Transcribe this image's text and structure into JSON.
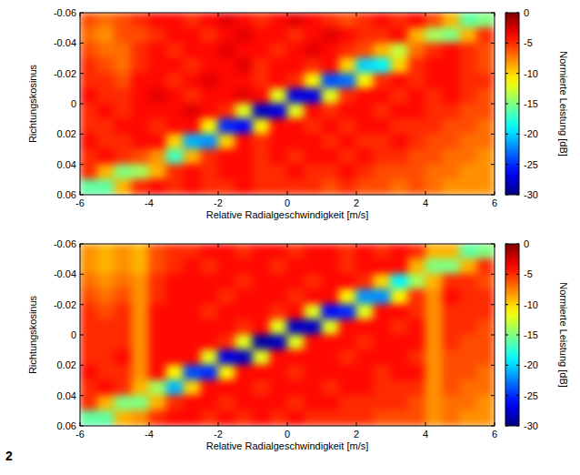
{
  "figure_label": "2",
  "chart_data": [
    {
      "type": "heatmap",
      "x_label": "Relative Radialgeschwindigkeit [m/s]",
      "y_label": "Richtungskosinus",
      "xlim": [
        -6,
        6
      ],
      "ylim": [
        0.06,
        -0.06
      ],
      "xticks": [
        -6,
        -4,
        -2,
        0,
        2,
        4,
        6
      ],
      "yticks": [
        0.06,
        0.04,
        0.02,
        0,
        -0.02,
        -0.04,
        -0.06
      ],
      "x": [
        -5.75,
        -5.25,
        -4.75,
        -4.25,
        -3.75,
        -3.25,
        -2.75,
        -2.25,
        -1.75,
        -1.25,
        -0.75,
        -0.25,
        0.25,
        0.75,
        1.25,
        1.75,
        2.25,
        2.75,
        3.25,
        3.75,
        4.25,
        4.75,
        5.25,
        5.75
      ],
      "y": [
        -0.055,
        -0.045,
        -0.035,
        -0.025,
        -0.015,
        -0.005,
        0.005,
        0.015,
        0.025,
        0.035,
        0.045,
        0.055
      ],
      "cells": [
        [
          -6,
          -7,
          -6,
          -5,
          -4,
          -4,
          -5,
          -4,
          -3,
          -4,
          -5,
          -4,
          -3,
          -4,
          -5,
          -6,
          -5,
          -4,
          -5,
          -4,
          -6,
          -9,
          -16,
          -15
        ],
        [
          -7,
          -8,
          -6,
          -6,
          -5,
          -4,
          -4,
          -5,
          -4,
          -3,
          -4,
          -4,
          -5,
          -4,
          -3,
          -4,
          -5,
          -5,
          -4,
          -9,
          -14,
          -15,
          -9,
          -5
        ],
        [
          -6,
          -7,
          -7,
          -5,
          -4,
          -5,
          -4,
          -4,
          -3,
          -4,
          -4,
          -5,
          -4,
          -3,
          -4,
          -5,
          -6,
          -9,
          -13,
          -7,
          -5,
          -4,
          -5,
          -6
        ],
        [
          -5,
          -6,
          -7,
          -5,
          -4,
          -4,
          -5,
          -4,
          -4,
          -3,
          -5,
          -4,
          -4,
          -5,
          -4,
          -10,
          -20,
          -19,
          -10,
          -5,
          -4,
          -4,
          -5,
          -6
        ],
        [
          -5,
          -5,
          -6,
          -4,
          -4,
          -5,
          -4,
          -3,
          -4,
          -4,
          -5,
          -4,
          -5,
          -11,
          -24,
          -23,
          -11,
          -5,
          -4,
          -5,
          -4,
          -4,
          -5,
          -5
        ],
        [
          -4,
          -5,
          -5,
          -4,
          -3,
          -4,
          -5,
          -4,
          -4,
          -3,
          -4,
          -12,
          -27,
          -27,
          -12,
          -5,
          -4,
          -4,
          -5,
          -4,
          -5,
          -4,
          -5,
          -6
        ],
        [
          -5,
          -4,
          -5,
          -4,
          -4,
          -4,
          -3,
          -4,
          -5,
          -12,
          -28,
          -27,
          -12,
          -4,
          -5,
          -4,
          -4,
          -5,
          -4,
          -4,
          -5,
          -5,
          -6,
          -6
        ],
        [
          -5,
          -5,
          -4,
          -4,
          -5,
          -4,
          -4,
          -11,
          -25,
          -26,
          -11,
          -4,
          -4,
          -5,
          -4,
          -5,
          -4,
          -4,
          -5,
          -5,
          -5,
          -6,
          -6,
          -7
        ],
        [
          -4,
          -5,
          -5,
          -4,
          -4,
          -10,
          -21,
          -22,
          -10,
          -4,
          -5,
          -4,
          -4,
          -4,
          -5,
          -4,
          -5,
          -5,
          -4,
          -5,
          -6,
          -6,
          -7,
          -7
        ],
        [
          -5,
          -4,
          -5,
          -6,
          -8,
          -17,
          -9,
          -5,
          -4,
          -4,
          -5,
          -4,
          -5,
          -4,
          -4,
          -5,
          -4,
          -5,
          -5,
          -6,
          -6,
          -7,
          -7,
          -8
        ],
        [
          -5,
          -9,
          -15,
          -14,
          -9,
          -5,
          -4,
          -5,
          -4,
          -4,
          -5,
          -5,
          -4,
          -5,
          -5,
          -4,
          -5,
          -6,
          -6,
          -6,
          -7,
          -7,
          -8,
          -8
        ],
        [
          -16,
          -16,
          -9,
          -5,
          -4,
          -5,
          -4,
          -5,
          -5,
          -4,
          -5,
          -5,
          -5,
          -5,
          -6,
          -5,
          -6,
          -6,
          -7,
          -6,
          -7,
          -8,
          -8,
          -8
        ]
      ],
      "colorbar": {
        "label": "Normierte Leistung [dB]",
        "range": [
          -30,
          0
        ],
        "ticks": [
          0,
          -5,
          -10,
          -15,
          -20,
          -25,
          -30
        ]
      }
    },
    {
      "type": "heatmap",
      "x_label": "Relative Radialgeschwindigkeit [m/s]",
      "y_label": "Richtungskosinus",
      "xlim": [
        -6,
        6
      ],
      "ylim": [
        0.06,
        -0.06
      ],
      "xticks": [
        -6,
        -4,
        -2,
        0,
        2,
        4,
        6
      ],
      "yticks": [
        0.06,
        0.04,
        0.02,
        0,
        -0.02,
        -0.04,
        -0.06
      ],
      "x": [
        -5.75,
        -5.25,
        -4.75,
        -4.25,
        -3.75,
        -3.25,
        -2.75,
        -2.25,
        -1.75,
        -1.25,
        -0.75,
        -0.25,
        0.25,
        0.75,
        1.25,
        1.75,
        2.25,
        2.75,
        3.25,
        3.75,
        4.25,
        4.75,
        5.25,
        5.75
      ],
      "y": [
        -0.055,
        -0.045,
        -0.035,
        -0.025,
        -0.015,
        -0.005,
        0.005,
        0.015,
        0.025,
        0.035,
        0.045,
        0.055
      ],
      "cells": [
        [
          -8,
          -9,
          -8,
          -9,
          -6,
          -5,
          -5,
          -4,
          -4,
          -5,
          -4,
          -4,
          -5,
          -4,
          -4,
          -5,
          -4,
          -5,
          -4,
          -5,
          -9,
          -9,
          -16,
          -15
        ],
        [
          -8,
          -9,
          -8,
          -9,
          -6,
          -5,
          -4,
          -5,
          -4,
          -4,
          -4,
          -5,
          -4,
          -4,
          -4,
          -5,
          -4,
          -4,
          -4,
          -9,
          -15,
          -15,
          -9,
          -5
        ],
        [
          -7,
          -8,
          -7,
          -8,
          -5,
          -4,
          -4,
          -4,
          -4,
          -5,
          -4,
          -4,
          -4,
          -5,
          -4,
          -4,
          -5,
          -10,
          -19,
          -14,
          -9,
          -5,
          -5,
          -6
        ],
        [
          -6,
          -7,
          -6,
          -8,
          -5,
          -4,
          -4,
          -4,
          -5,
          -4,
          -4,
          -4,
          -5,
          -4,
          -4,
          -11,
          -22,
          -22,
          -11,
          -5,
          -8,
          -4,
          -5,
          -5
        ],
        [
          -5,
          -6,
          -5,
          -8,
          -4,
          -4,
          -4,
          -5,
          -4,
          -4,
          -4,
          -5,
          -4,
          -12,
          -26,
          -25,
          -12,
          -4,
          -4,
          -5,
          -8,
          -5,
          -5,
          -5
        ],
        [
          -5,
          -5,
          -5,
          -8,
          -4,
          -4,
          -4,
          -4,
          -4,
          -5,
          -4,
          -12,
          -28,
          -28,
          -12,
          -4,
          -4,
          -4,
          -5,
          -4,
          -8,
          -5,
          -5,
          -6
        ],
        [
          -5,
          -5,
          -5,
          -8,
          -4,
          -4,
          -4,
          -4,
          -5,
          -12,
          -29,
          -28,
          -12,
          -4,
          -4,
          -4,
          -5,
          -4,
          -4,
          -4,
          -8,
          -5,
          -6,
          -6
        ],
        [
          -5,
          -5,
          -4,
          -8,
          -4,
          -4,
          -4,
          -12,
          -27,
          -28,
          -12,
          -4,
          -4,
          -4,
          -4,
          -5,
          -4,
          -4,
          -4,
          -5,
          -8,
          -6,
          -6,
          -6
        ],
        [
          -4,
          -5,
          -5,
          -8,
          -4,
          -11,
          -24,
          -25,
          -11,
          -4,
          -4,
          -4,
          -5,
          -4,
          -4,
          -4,
          -4,
          -5,
          -4,
          -4,
          -8,
          -6,
          -6,
          -7
        ],
        [
          -5,
          -4,
          -5,
          -9,
          -14,
          -21,
          -10,
          -4,
          -4,
          -4,
          -5,
          -4,
          -4,
          -4,
          -5,
          -4,
          -4,
          -5,
          -5,
          -5,
          -8,
          -6,
          -7,
          -7
        ],
        [
          -5,
          -9,
          -15,
          -15,
          -9,
          -5,
          -4,
          -4,
          -5,
          -4,
          -4,
          -4,
          -5,
          -4,
          -4,
          -5,
          -5,
          -5,
          -5,
          -6,
          -8,
          -7,
          -7,
          -8
        ],
        [
          -16,
          -16,
          -9,
          -8,
          -5,
          -4,
          -4,
          -5,
          -4,
          -5,
          -4,
          -5,
          -4,
          -5,
          -5,
          -5,
          -5,
          -6,
          -6,
          -6,
          -8,
          -7,
          -8,
          -8
        ]
      ],
      "colorbar": {
        "label": "Normierte Leistung [dB]",
        "range": [
          -30,
          0
        ],
        "ticks": [
          0,
          -5,
          -10,
          -15,
          -20,
          -25,
          -30
        ]
      }
    }
  ]
}
